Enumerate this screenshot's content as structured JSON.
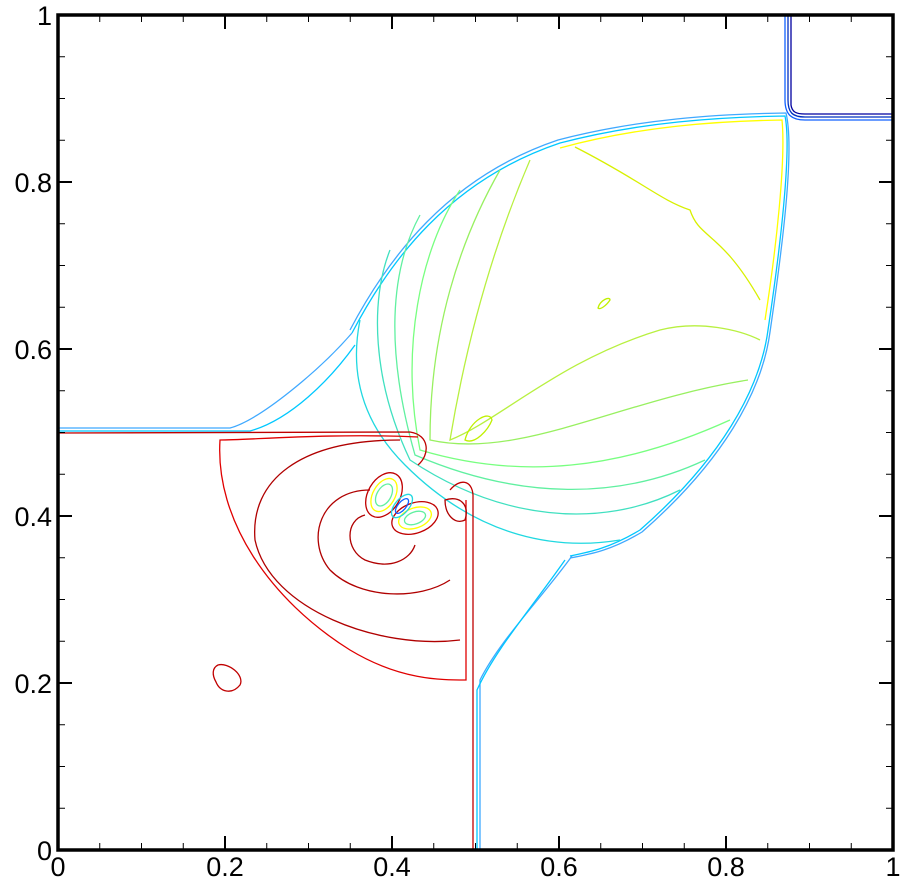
{
  "chart_data": {
    "type": "contour",
    "xlim": [
      0,
      1
    ],
    "ylim": [
      0,
      1
    ],
    "xticks": [
      0,
      0.2,
      0.4,
      0.6,
      0.8,
      1
    ],
    "yticks": [
      0,
      0.2,
      0.4,
      0.6,
      0.8,
      1
    ]
  }
}
